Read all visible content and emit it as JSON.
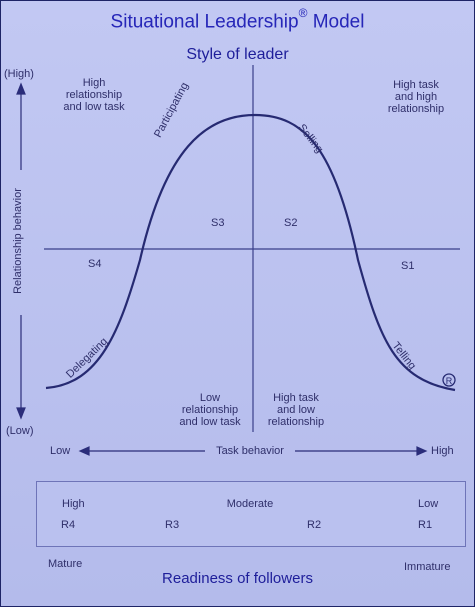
{
  "title": "Situational Leadership",
  "title_mark": "®",
  "title_suffix": "Model",
  "style_of_leader": "Style of leader",
  "y_axis": {
    "high": "(High)",
    "low": "(Low)",
    "label": "Relationship behavior"
  },
  "quadrants": {
    "top_left": [
      "High",
      "relationship",
      "and low task"
    ],
    "top_right": [
      "High task",
      "and high",
      "relationship"
    ],
    "bottom_left": [
      "Low",
      "relationship",
      "and low task"
    ],
    "bottom_right": [
      "High task",
      "and low",
      "relationship"
    ]
  },
  "styles": {
    "s1": "S1",
    "s2": "S2",
    "s3": "S3",
    "s4": "S4"
  },
  "curve_labels": {
    "participating": "Participating",
    "selling": "Selling",
    "delegating": "Delegating",
    "telling": "Telling"
  },
  "registered_mark": "R",
  "x_axis": {
    "low": "Low",
    "label": "Task behavior",
    "high": "High"
  },
  "readiness_scale": {
    "high": "High",
    "moderate": "Moderate",
    "low": "Low",
    "levels": [
      "R4",
      "R3",
      "R2",
      "R1"
    ],
    "mature": "Mature",
    "immature": "Immature"
  },
  "readiness_label": "Readiness of followers"
}
